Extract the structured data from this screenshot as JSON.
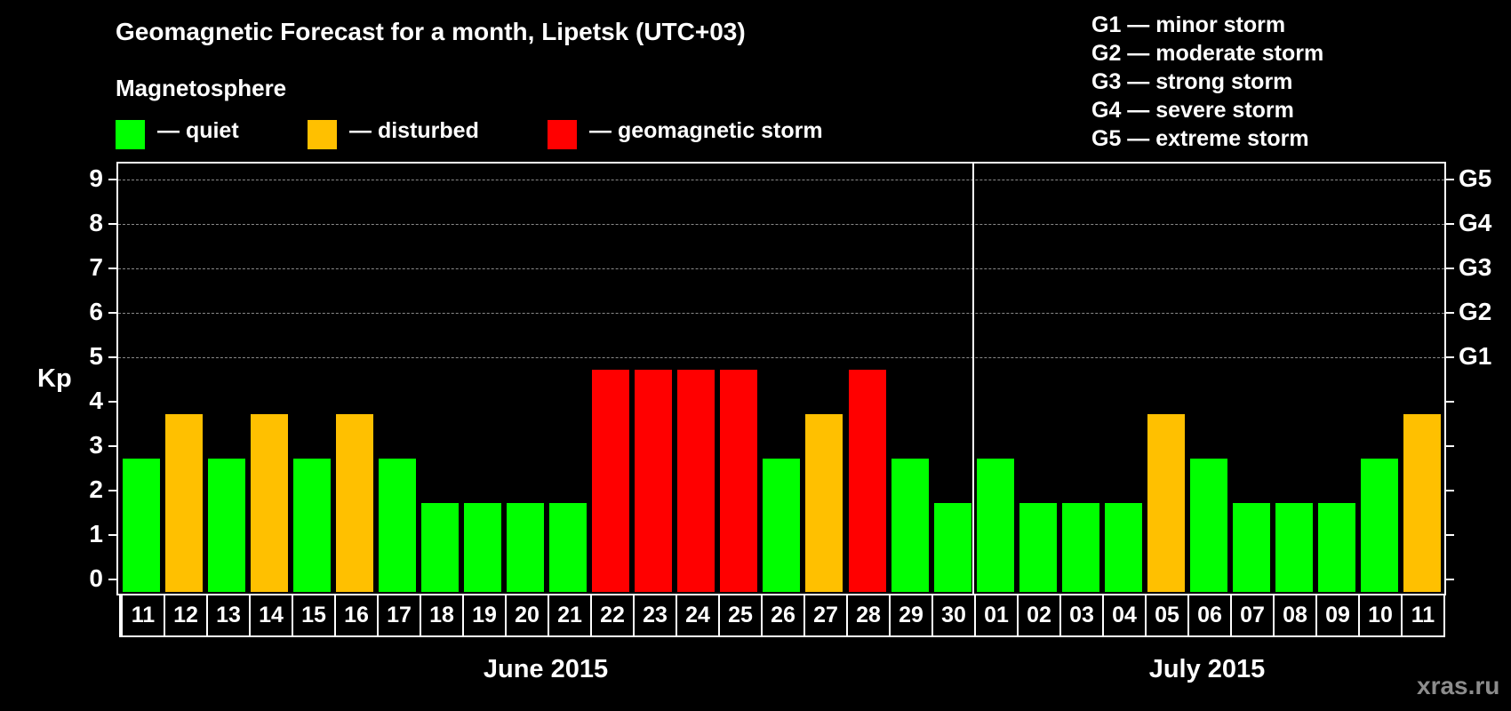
{
  "title": "Geomagnetic Forecast for a month, Lipetsk (UTC+03)",
  "subtitle": "Magnetosphere",
  "legend": [
    {
      "label": "— quiet",
      "color": "#00ff00"
    },
    {
      "label": "— disturbed",
      "color": "#ffc000"
    },
    {
      "label": "— geomagnetic storm",
      "color": "#ff0000"
    }
  ],
  "g_scale": [
    "G1 — minor storm",
    "G2 — moderate storm",
    "G3 — strong storm",
    "G4 — severe storm",
    "G5 — extreme storm"
  ],
  "y_axis_label": "Kp",
  "y_ticks": [
    "0",
    "1",
    "2",
    "3",
    "4",
    "5",
    "6",
    "7",
    "8",
    "9"
  ],
  "right_ticks": [
    {
      "kp": 5,
      "label": "G1"
    },
    {
      "kp": 6,
      "label": "G2"
    },
    {
      "kp": 7,
      "label": "G3"
    },
    {
      "kp": 8,
      "label": "G4"
    },
    {
      "kp": 9,
      "label": "G5"
    }
  ],
  "months": [
    {
      "label": "June 2015"
    },
    {
      "label": "July 2015"
    }
  ],
  "watermark": "xras.ru",
  "colors": {
    "quiet": "#00ff00",
    "disturbed": "#ffc000",
    "storm": "#ff0000",
    "background": "#000000",
    "grid": "#8a8a8a"
  },
  "chart_data": {
    "type": "bar",
    "title": "Geomagnetic Forecast for a month, Lipetsk (UTC+03)",
    "subtitle": "Magnetosphere",
    "xlabel": "June 2015 / July 2015",
    "ylabel": "Kp",
    "ylim": [
      0,
      9
    ],
    "grid": "dashed horizontal lines at Kp 5-9",
    "legend_position": "top",
    "categories": [
      "11",
      "12",
      "13",
      "14",
      "15",
      "16",
      "17",
      "18",
      "19",
      "20",
      "21",
      "22",
      "23",
      "24",
      "25",
      "26",
      "27",
      "28",
      "29",
      "30",
      "01",
      "02",
      "03",
      "04",
      "05",
      "06",
      "07",
      "08",
      "09",
      "10",
      "11"
    ],
    "values": [
      3,
      4,
      3,
      4,
      3,
      4,
      3,
      2,
      2,
      2,
      2,
      5,
      5,
      5,
      5,
      3,
      4,
      5,
      3,
      2,
      3,
      2,
      2,
      2,
      4,
      3,
      2,
      2,
      2,
      3,
      4
    ],
    "status": [
      "quiet",
      "disturbed",
      "quiet",
      "disturbed",
      "quiet",
      "disturbed",
      "quiet",
      "quiet",
      "quiet",
      "quiet",
      "quiet",
      "storm",
      "storm",
      "storm",
      "storm",
      "quiet",
      "disturbed",
      "storm",
      "quiet",
      "quiet",
      "quiet",
      "quiet",
      "quiet",
      "quiet",
      "disturbed",
      "quiet",
      "quiet",
      "quiet",
      "quiet",
      "quiet",
      "disturbed"
    ],
    "month_groups": [
      {
        "label": "June 2015",
        "from": "11",
        "to": "30"
      },
      {
        "label": "July 2015",
        "from": "01",
        "to": "11"
      }
    ],
    "secondary_axis": {
      "5": "G1",
      "6": "G2",
      "7": "G3",
      "8": "G4",
      "9": "G5"
    }
  }
}
